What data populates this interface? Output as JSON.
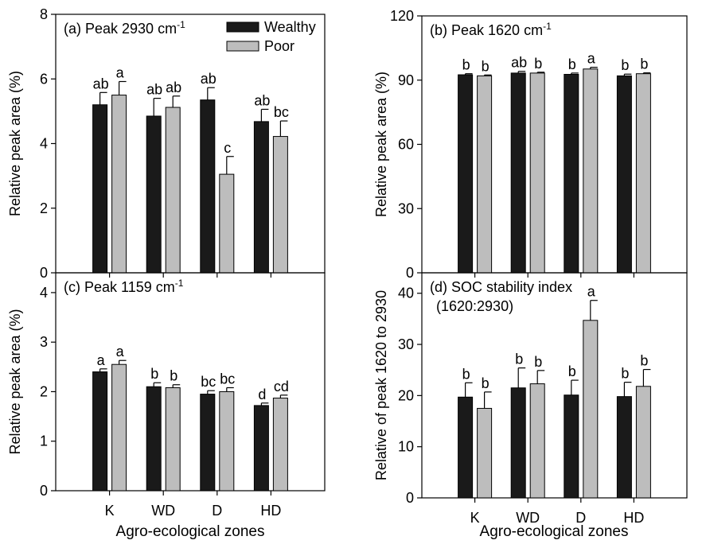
{
  "figure": {
    "xlabel_left": "Agro-ecological zones",
    "xlabel_right": "Agro-ecological zones"
  },
  "colors": {
    "wealthy": "#1a1a1a",
    "poor": "#bdbdbd"
  },
  "chart_data": [
    {
      "type": "bar",
      "panel_label": "(a) Peak 2930 cm",
      "superscript": "-1",
      "ylabel": "Relative peak area (%)",
      "categories": [
        "K",
        "WD",
        "D",
        "HD"
      ],
      "ylim": [
        0,
        8
      ],
      "yticks": [
        "0",
        "2",
        "4",
        "6",
        "8"
      ],
      "legend": {
        "position": "top-right",
        "entries": [
          "Wealthy",
          "Poor"
        ]
      },
      "series": [
        {
          "name": "Wealthy",
          "values": [
            5.2,
            4.85,
            5.35,
            4.68
          ],
          "errors": [
            0.38,
            0.55,
            0.38,
            0.38
          ],
          "letters": [
            "ab",
            "ab",
            "ab",
            "ab"
          ]
        },
        {
          "name": "Poor",
          "values": [
            5.5,
            5.12,
            3.05,
            4.22
          ],
          "errors": [
            0.42,
            0.35,
            0.55,
            0.48
          ],
          "letters": [
            "a",
            "ab",
            "c",
            "bc"
          ]
        }
      ]
    },
    {
      "type": "bar",
      "panel_label": "(b) Peak 1620 cm",
      "superscript": "-1",
      "ylabel": "Relative peak area (%)",
      "categories": [
        "K",
        "WD",
        "D",
        "HD"
      ],
      "ylim": [
        0,
        120
      ],
      "yticks": [
        "0",
        "30",
        "60",
        "90",
        "120"
      ],
      "series": [
        {
          "name": "Wealthy",
          "values": [
            92.5,
            93.3,
            92.7,
            92.0
          ],
          "errors": [
            0.5,
            0.8,
            0.6,
            0.8
          ],
          "letters": [
            "b",
            "ab",
            "b",
            "b"
          ]
        },
        {
          "name": "Poor",
          "values": [
            92.0,
            93.3,
            95.2,
            93.0
          ],
          "errors": [
            0.4,
            0.4,
            0.8,
            0.4
          ],
          "letters": [
            "b",
            "b",
            "a",
            "b"
          ]
        }
      ]
    },
    {
      "type": "bar",
      "panel_label": "(c) Peak 1159 cm",
      "superscript": "-1",
      "ylabel": "Relative peak area (%)",
      "categories": [
        "K",
        "WD",
        "D",
        "HD"
      ],
      "ylim": [
        0,
        4.4
      ],
      "yticks": [
        "0",
        "1",
        "2",
        "3",
        "4"
      ],
      "series": [
        {
          "name": "Wealthy",
          "values": [
            2.4,
            2.1,
            1.95,
            1.72
          ],
          "errors": [
            0.06,
            0.08,
            0.07,
            0.05
          ],
          "letters": [
            "a",
            "b",
            "bc",
            "d"
          ]
        },
        {
          "name": "Poor",
          "values": [
            2.55,
            2.08,
            2.0,
            1.87
          ],
          "errors": [
            0.08,
            0.06,
            0.08,
            0.06
          ],
          "letters": [
            "a",
            "b",
            "bc",
            "cd"
          ]
        }
      ]
    },
    {
      "type": "bar",
      "panel_label": "(d) SOC stability index",
      "panel_label_line2": "(1620:2930)",
      "ylabel": "Relative of peak 1620 to 2930",
      "categories": [
        "K",
        "WD",
        "D",
        "HD"
      ],
      "ylim": [
        0,
        44
      ],
      "yticks": [
        "0",
        "10",
        "20",
        "30",
        "40"
      ],
      "series": [
        {
          "name": "Wealthy",
          "values": [
            19.7,
            21.5,
            20.1,
            19.8
          ],
          "errors": [
            2.8,
            3.9,
            2.9,
            2.8
          ],
          "letters": [
            "b",
            "b",
            "b",
            "b"
          ]
        },
        {
          "name": "Poor",
          "values": [
            17.5,
            22.3,
            34.7,
            21.8
          ],
          "errors": [
            3.2,
            2.6,
            3.9,
            3.3
          ],
          "letters": [
            "b",
            "b",
            "a",
            "b"
          ]
        }
      ]
    }
  ]
}
